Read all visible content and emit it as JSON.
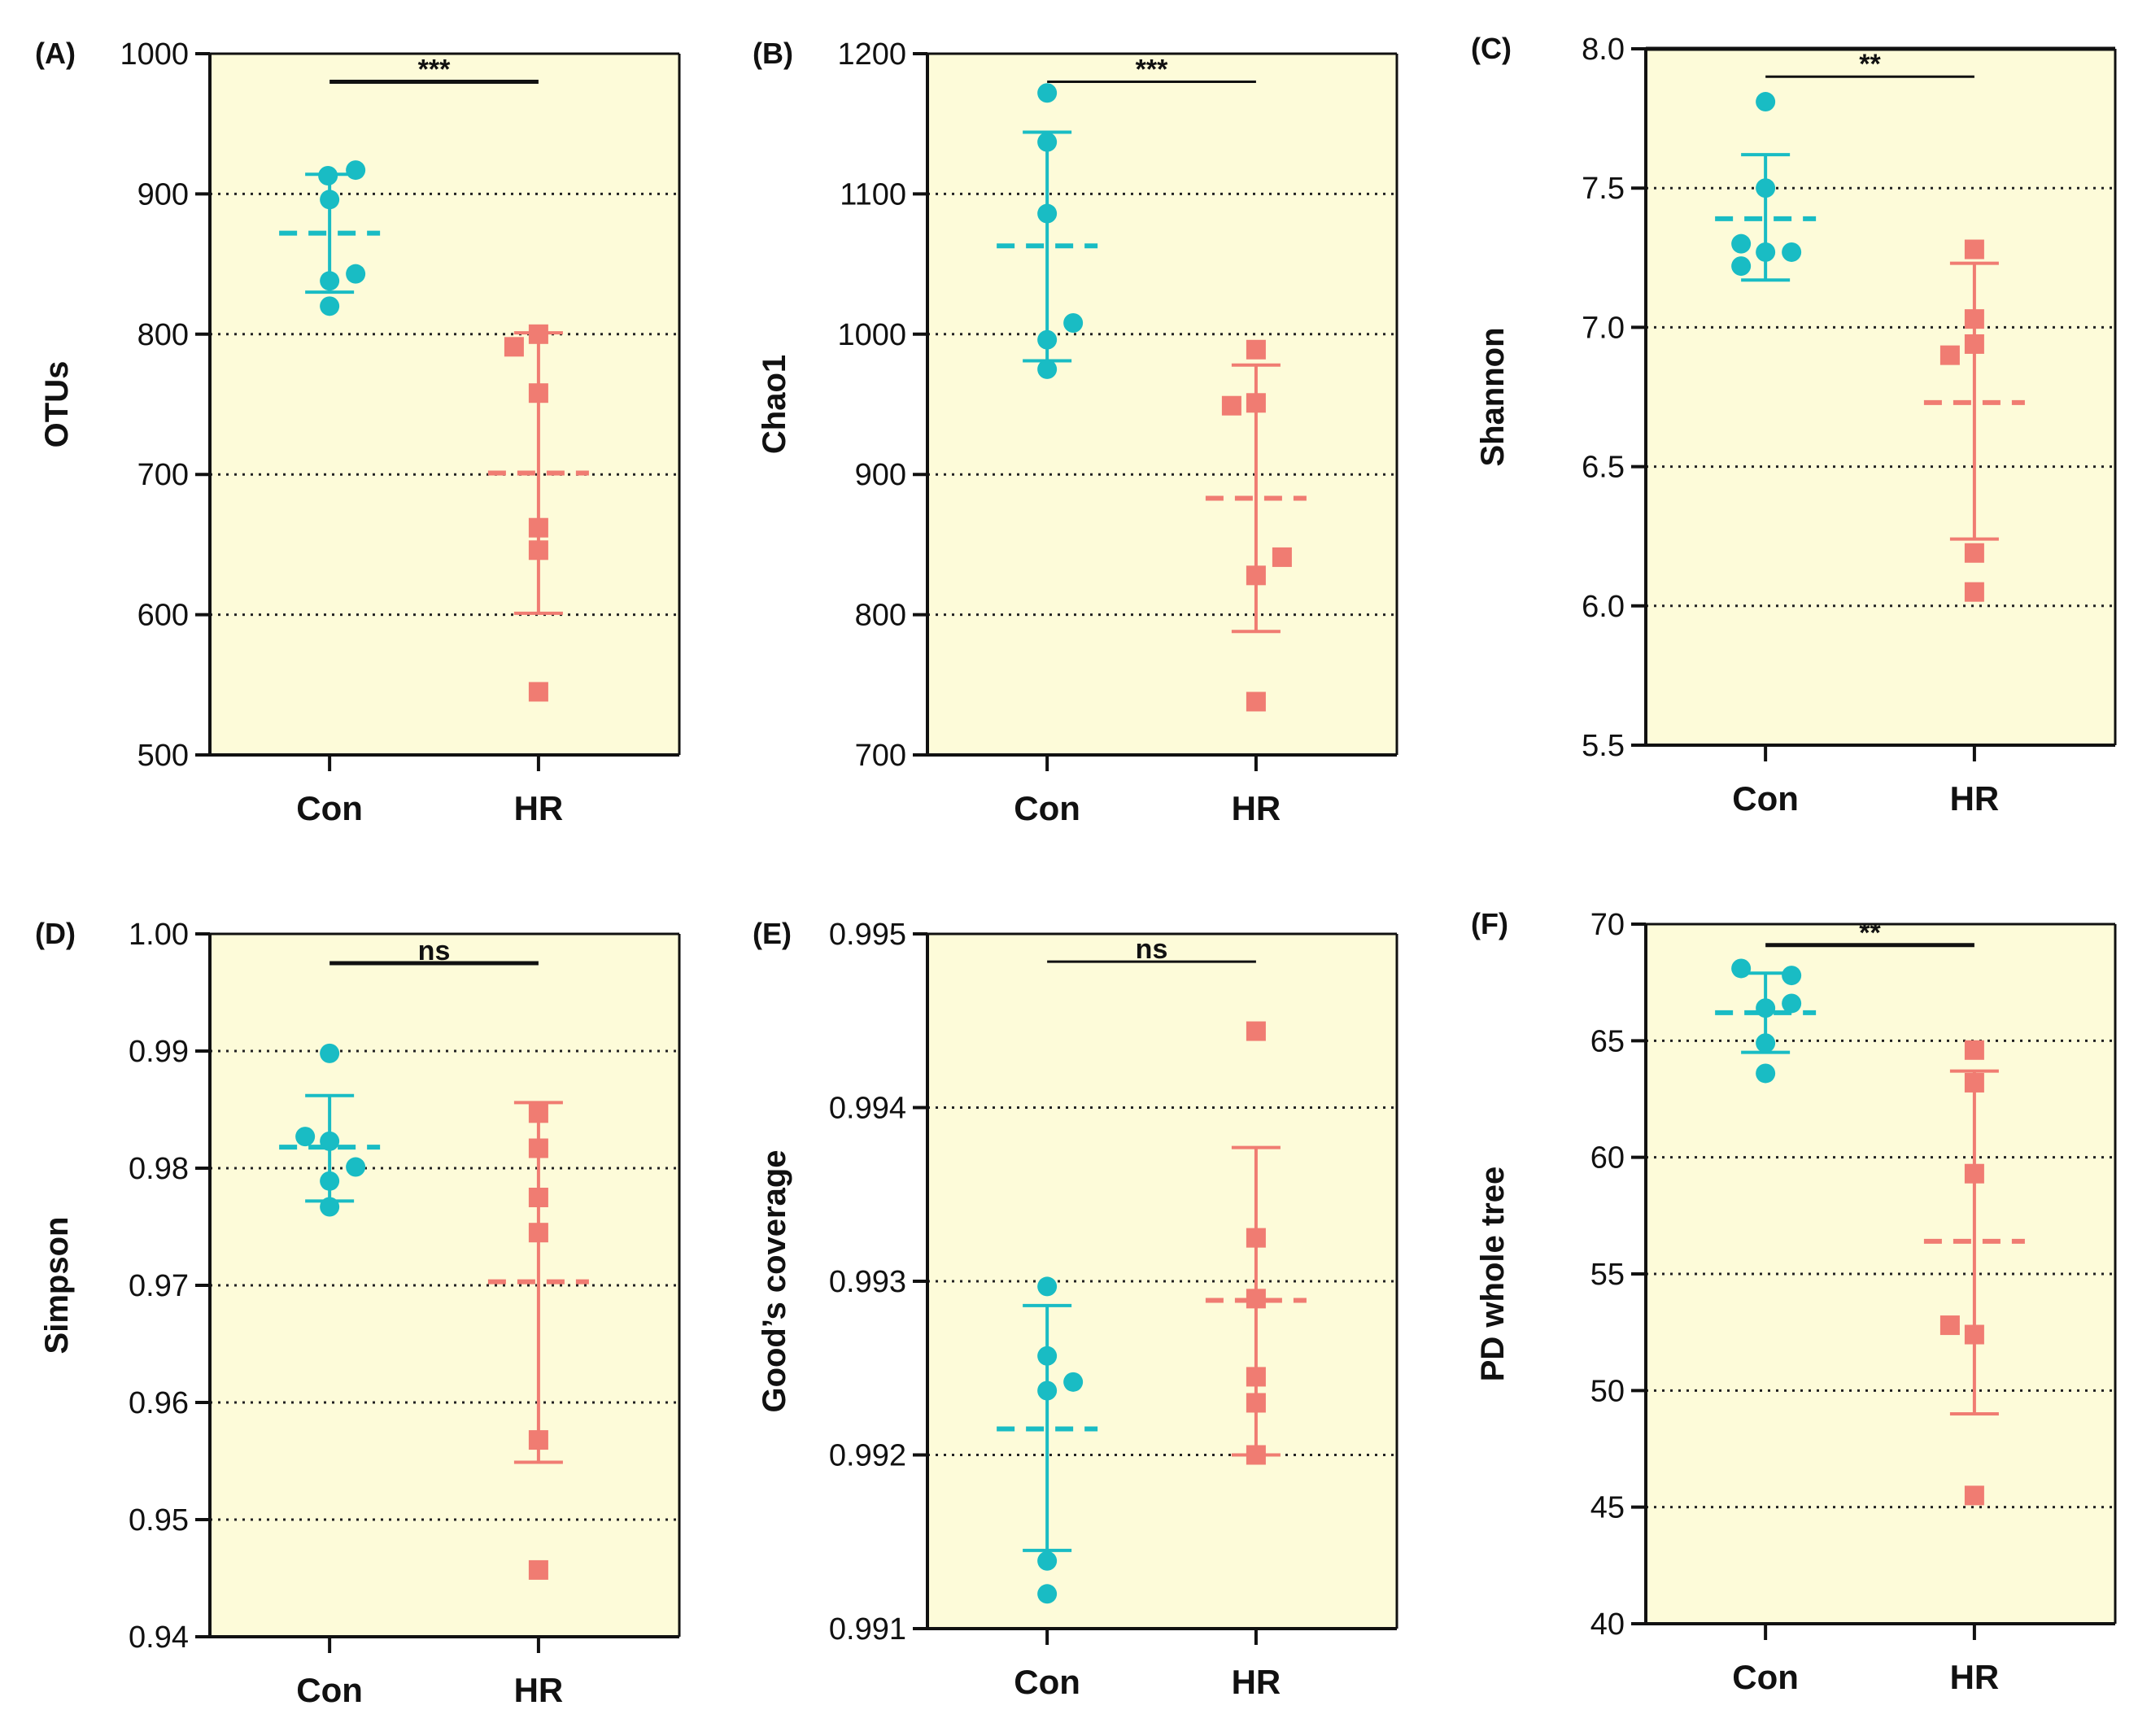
{
  "colors": {
    "plot_bg": "#fdfbd9",
    "con": "#19bcc4",
    "hr": "#f07c72",
    "axis": "#111111",
    "grid": "#222222"
  },
  "chart_data": [
    {
      "type": "scatter",
      "panel": "(A)",
      "ylabel": "OTUs",
      "ylim": [
        500,
        1000
      ],
      "yticks": [
        500,
        600,
        700,
        800,
        900,
        1000
      ],
      "ytick_labels": [
        "500",
        "600",
        "700",
        "800",
        "900",
        "1000"
      ],
      "grid_lines": [
        600,
        700,
        800,
        900
      ],
      "categories": [
        "Con",
        "HR"
      ],
      "significance": "***",
      "sig_y": 980,
      "sig_bold": true,
      "series": [
        {
          "name": "Con",
          "points": [
            [
              -0.02,
              913
            ],
            [
              0.32,
              917
            ],
            [
              0.0,
              896
            ],
            [
              0.0,
              838
            ],
            [
              0.32,
              843
            ],
            [
              0.0,
              820
            ]
          ],
          "mean": 872,
          "sd_low": 830,
          "sd_high": 914
        },
        {
          "name": "HR",
          "points": [
            [
              0.0,
              800
            ],
            [
              -0.3,
              791
            ],
            [
              0.0,
              758
            ],
            [
              0.0,
              662
            ],
            [
              0.0,
              646
            ],
            [
              0.0,
              545
            ]
          ],
          "mean": 701,
          "sd_low": 601,
          "sd_high": 801
        }
      ]
    },
    {
      "type": "scatter",
      "panel": "(B)",
      "ylabel": "Chao1",
      "ylim": [
        700,
        1200
      ],
      "yticks": [
        700,
        800,
        900,
        1000,
        1100,
        1200
      ],
      "ytick_labels": [
        "700",
        "800",
        "900",
        "1000",
        "1100",
        "1200"
      ],
      "grid_lines": [
        800,
        900,
        1000,
        1100
      ],
      "categories": [
        "Con",
        "HR"
      ],
      "significance": "***",
      "sig_y": 1180,
      "sig_bold": false,
      "series": [
        {
          "name": "Con",
          "points": [
            [
              0.0,
              1172
            ],
            [
              0.0,
              1137
            ],
            [
              0.0,
              1086
            ],
            [
              0.0,
              996
            ],
            [
              0.32,
              1008
            ],
            [
              0.0,
              975
            ]
          ],
          "mean": 1063,
          "sd_low": 981,
          "sd_high": 1144
        },
        {
          "name": "HR",
          "points": [
            [
              0.0,
              989
            ],
            [
              -0.3,
              949
            ],
            [
              0.0,
              951
            ],
            [
              0.32,
              841
            ],
            [
              0.0,
              828
            ],
            [
              0.0,
              738
            ]
          ],
          "mean": 883,
          "sd_low": 788,
          "sd_high": 978
        }
      ]
    },
    {
      "type": "scatter",
      "panel": "(C)",
      "ylabel": "Shannon",
      "ylim": [
        5.5,
        8.0
      ],
      "yticks": [
        5.5,
        6.0,
        6.5,
        7.0,
        7.5,
        8.0
      ],
      "ytick_labels": [
        "5.5",
        "6.0",
        "6.5",
        "7.0",
        "7.5",
        "8.0"
      ],
      "grid_lines": [
        6.0,
        6.5,
        7.0,
        7.5
      ],
      "categories": [
        "Con",
        "HR"
      ],
      "significance": "**",
      "sig_y": 7.9,
      "sig_bold": false,
      "series": [
        {
          "name": "Con",
          "points": [
            [
              0.0,
              7.81
            ],
            [
              0.0,
              7.5
            ],
            [
              -0.3,
              7.3
            ],
            [
              0.0,
              7.27
            ],
            [
              0.32,
              7.27
            ],
            [
              -0.3,
              7.22
            ]
          ],
          "mean": 7.39,
          "sd_low": 7.17,
          "sd_high": 7.62
        },
        {
          "name": "HR",
          "points": [
            [
              0.0,
              7.28
            ],
            [
              0.0,
              7.03
            ],
            [
              0.0,
              6.94
            ],
            [
              -0.3,
              6.9
            ],
            [
              0.0,
              6.19
            ],
            [
              0.0,
              6.05
            ]
          ],
          "mean": 6.73,
          "sd_low": 6.24,
          "sd_high": 7.23
        }
      ]
    },
    {
      "type": "scatter",
      "panel": "(D)",
      "ylabel": "Simpson",
      "ylim": [
        0.94,
        1.0
      ],
      "yticks": [
        0.94,
        0.95,
        0.96,
        0.97,
        0.98,
        0.99,
        1.0
      ],
      "ytick_labels": [
        "0.94",
        "0.95",
        "0.96",
        "0.97",
        "0.98",
        "0.99",
        "1.00"
      ],
      "grid_lines": [
        0.95,
        0.96,
        0.97,
        0.98,
        0.99
      ],
      "categories": [
        "Con",
        "HR"
      ],
      "significance": "ns",
      "sig_y": 0.9975,
      "sig_bold": true,
      "series": [
        {
          "name": "Con",
          "points": [
            [
              0.0,
              0.9898
            ],
            [
              -0.3,
              0.9827
            ],
            [
              0.0,
              0.9823
            ],
            [
              0.32,
              0.9801
            ],
            [
              0.0,
              0.9789
            ],
            [
              0.0,
              0.9767
            ]
          ],
          "mean": 0.9818,
          "sd_low": 0.9772,
          "sd_high": 0.9862
        },
        {
          "name": "HR",
          "points": [
            [
              0.0,
              0.9847
            ],
            [
              0.0,
              0.9817
            ],
            [
              0.0,
              0.9775
            ],
            [
              0.0,
              0.9745
            ],
            [
              0.0,
              0.9568
            ],
            [
              0.0,
              0.9457
            ]
          ],
          "mean": 0.9703,
          "sd_low": 0.9549,
          "sd_high": 0.9856
        }
      ]
    },
    {
      "type": "scatter",
      "panel": "(E)",
      "ylabel": "Good’s coverage",
      "ylim": [
        0.991,
        0.995
      ],
      "yticks": [
        0.991,
        0.992,
        0.993,
        0.994,
        0.995
      ],
      "ytick_labels": [
        "0.991",
        "0.992",
        "0.993",
        "0.994",
        "0.995"
      ],
      "grid_lines": [
        0.992,
        0.993,
        0.994
      ],
      "categories": [
        "Con",
        "HR"
      ],
      "significance": "ns",
      "sig_y": 0.99484,
      "sig_bold": false,
      "series": [
        {
          "name": "Con",
          "points": [
            [
              0.0,
              0.99297
            ],
            [
              0.0,
              0.99257
            ],
            [
              0.0,
              0.99237
            ],
            [
              0.32,
              0.99242
            ],
            [
              0.0,
              0.99139
            ],
            [
              0.0,
              0.9912
            ]
          ],
          "mean": 0.99215,
          "sd_low": 0.99145,
          "sd_high": 0.99286
        },
        {
          "name": "HR",
          "points": [
            [
              0.0,
              0.99444
            ],
            [
              0.0,
              0.99325
            ],
            [
              0.0,
              0.9929
            ],
            [
              0.0,
              0.99245
            ],
            [
              0.0,
              0.9923
            ],
            [
              0.0,
              0.992
            ]
          ],
          "mean": 0.99289,
          "sd_low": 0.992,
          "sd_high": 0.99377
        }
      ]
    },
    {
      "type": "scatter",
      "panel": "(F)",
      "ylabel": "PD whole tree",
      "ylim": [
        40,
        70
      ],
      "yticks": [
        40,
        45,
        50,
        55,
        60,
        65,
        70
      ],
      "ytick_labels": [
        "40",
        "45",
        "50",
        "55",
        "60",
        "65",
        "70"
      ],
      "grid_lines": [
        45,
        50,
        55,
        60,
        65
      ],
      "categories": [
        "Con",
        "HR"
      ],
      "significance": "**",
      "sig_y": 69.1,
      "sig_bold": true,
      "series": [
        {
          "name": "Con",
          "points": [
            [
              -0.3,
              68.1
            ],
            [
              0.32,
              67.8
            ],
            [
              0.32,
              66.6
            ],
            [
              0.0,
              66.4
            ],
            [
              0.0,
              64.9
            ],
            [
              0.0,
              63.6
            ]
          ],
          "mean": 66.2,
          "sd_low": 64.5,
          "sd_high": 67.9
        },
        {
          "name": "HR",
          "points": [
            [
              0.0,
              64.6
            ],
            [
              0.0,
              63.2
            ],
            [
              0.0,
              59.3
            ],
            [
              -0.3,
              52.8
            ],
            [
              0.0,
              52.4
            ],
            [
              0.0,
              45.5
            ]
          ],
          "mean": 56.4,
          "sd_low": 49.0,
          "sd_high": 63.7
        }
      ]
    }
  ]
}
